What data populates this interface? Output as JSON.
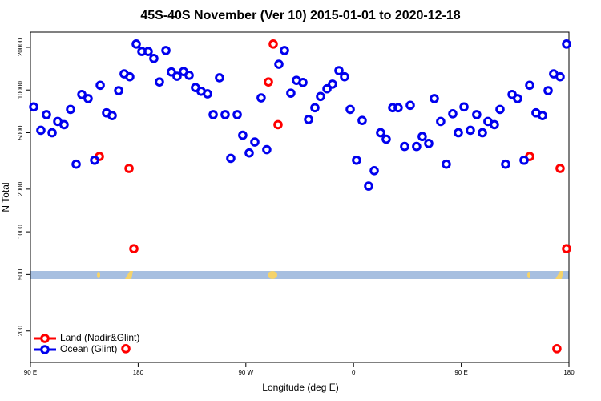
{
  "chart_data": {
    "type": "scatter",
    "title": "45S-40S November (Ver 10)   2015-01-01 to 2020-12-18",
    "x_label": "Longitude (deg E)",
    "y_label": "N Total",
    "log_y": true,
    "legend": "bottom-left",
    "xlim": [
      90,
      540
    ],
    "ylim": [
      120,
      25600
    ],
    "xticks": [
      {
        "value": 90,
        "label": "90 E"
      },
      180,
      {
        "value": 270,
        "label": "90 W"
      },
      {
        "value": 360,
        "label": "0"
      },
      {
        "value": 450,
        "label": "90 E"
      },
      {
        "value": 540,
        "label": "180"
      }
    ],
    "yticks": [
      200,
      500,
      1000,
      2000,
      5000,
      10000,
      20000
    ],
    "series": [
      {
        "name": "Land (Nadir&Glint)",
        "color": "#ff0000",
        "x": [
          147.6,
          172.4,
          176.4,
          169.7,
          288.9,
          292.9,
          296.9,
          507.2,
          532.6,
          538.0,
          529.9
        ],
        "values": [
          3400,
          2800,
          760,
          150,
          11400,
          21100,
          5700,
          3400,
          2800,
          760,
          150
        ]
      },
      {
        "name": "Ocean (Glint)",
        "color": "#0000ee",
        "x": [
          92.7,
          98.7,
          103.4,
          108.1,
          112.8,
          118.1,
          123.5,
          128.2,
          132.9,
          138.2,
          143.6,
          148.3,
          153.6,
          158.3,
          163.7,
          168.3,
          173.0,
          178.4,
          183.1,
          188.4,
          193.1,
          197.8,
          203.2,
          207.8,
          212.5,
          217.9,
          222.6,
          227.9,
          232.6,
          238.0,
          242.7,
          248.0,
          252.7,
          257.4,
          262.8,
          267.4,
          272.8,
          277.5,
          282.8,
          287.5,
          297.6,
          302.3,
          307.6,
          312.3,
          317.7,
          322.4,
          327.7,
          332.4,
          337.8,
          342.4,
          347.8,
          352.5,
          357.2,
          362.5,
          367.2,
          372.6,
          377.3,
          382.6,
          387.3,
          392.7,
          397.3,
          402.7,
          407.4,
          412.7,
          417.4,
          422.8,
          427.5,
          432.8,
          437.5,
          442.9,
          447.6,
          452.3,
          457.6,
          462.9,
          467.7,
          472.3,
          477.7,
          482.4,
          487.1,
          492.5,
          497.1,
          502.5,
          507.2,
          512.5,
          517.9,
          522.6,
          527.2,
          532.6,
          538.0
        ],
        "values": [
          7600,
          5200,
          6700,
          5000,
          6000,
          5700,
          7300,
          3000,
          9300,
          8700,
          3200,
          10800,
          6900,
          6600,
          9900,
          13000,
          12400,
          21100,
          18700,
          18700,
          16700,
          11400,
          19000,
          13400,
          12500,
          13500,
          12700,
          10400,
          9800,
          9400,
          6700,
          12200,
          6700,
          3300,
          6700,
          4800,
          3600,
          4300,
          8800,
          3800,
          15200,
          19000,
          9500,
          11700,
          11300,
          6200,
          7500,
          9000,
          10200,
          11000,
          13700,
          12400,
          7300,
          3200,
          6100,
          2100,
          2700,
          5000,
          4500,
          7500,
          7500,
          4000,
          7800,
          4000,
          4700,
          4200,
          8700,
          6000,
          3000,
          6800,
          5000,
          7600,
          5200,
          6700,
          5000,
          6000,
          5700,
          7300,
          3000,
          9300,
          8700,
          3200,
          10800,
          6900,
          6600,
          9900,
          13000,
          12400,
          21100
        ]
      }
    ]
  }
}
